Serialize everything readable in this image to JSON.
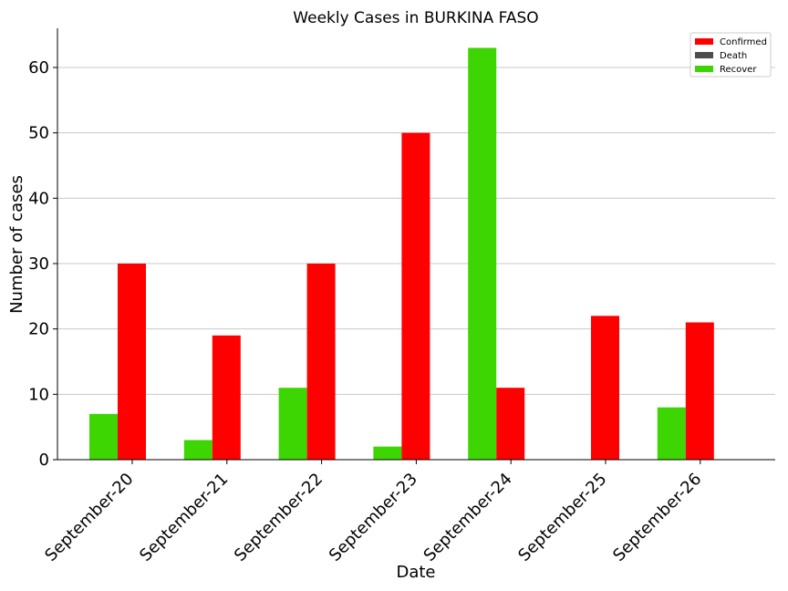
{
  "chart_data": {
    "type": "bar",
    "title": "Weekly Cases in BURKINA FASO",
    "xlabel": "Date",
    "ylabel": "Number of cases",
    "categories": [
      "September-20",
      "September-21",
      "September-22",
      "September-23",
      "September-24",
      "September-25",
      "September-26"
    ],
    "series": [
      {
        "name": "Recover",
        "color": "#3dd603",
        "values": [
          7,
          3,
          11,
          2,
          63,
          0,
          8
        ]
      },
      {
        "name": "Confirmed",
        "color": "#ff0000",
        "values": [
          30,
          19,
          30,
          50,
          11,
          22,
          21
        ]
      },
      {
        "name": "Death",
        "color": "#4d4d4d",
        "values": [
          0,
          0,
          0,
          0,
          0,
          0,
          0
        ]
      }
    ],
    "legend_order": [
      "Confirmed",
      "Death",
      "Recover"
    ],
    "ylim": [
      0,
      66
    ],
    "yticks": [
      0,
      10,
      20,
      30,
      40,
      50,
      60
    ],
    "grid": "horizontal",
    "legend_position": "top-right"
  }
}
